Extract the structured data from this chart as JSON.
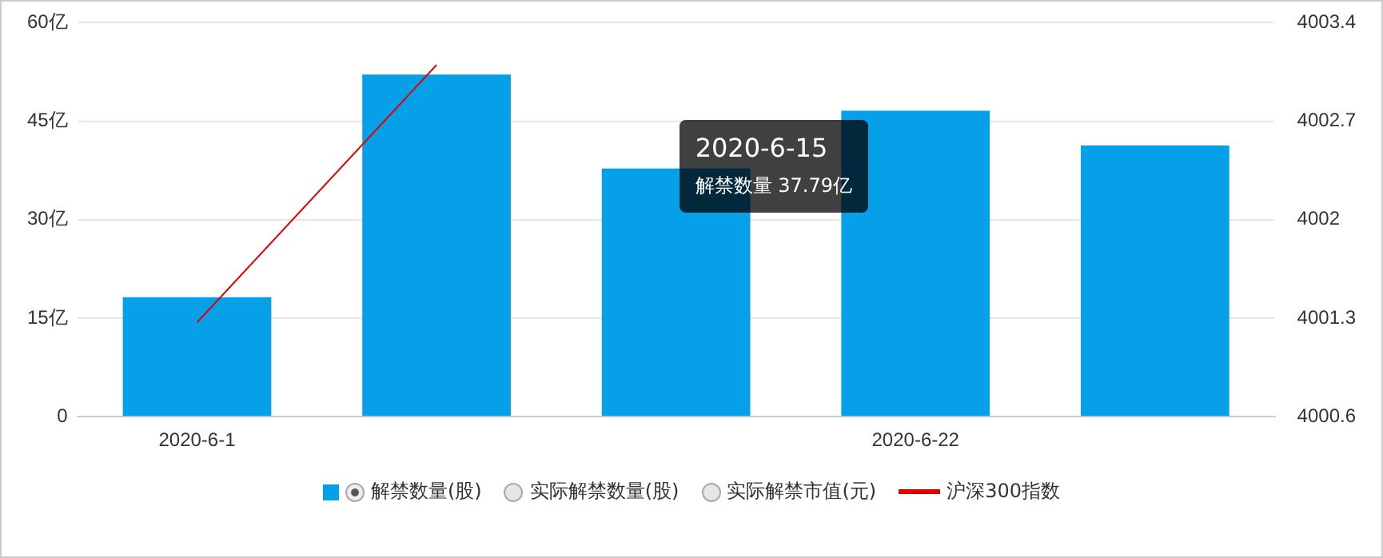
{
  "chart_data": {
    "type": "bar",
    "categories": [
      "2020-6-1",
      null,
      null,
      "2020-6-22",
      null
    ],
    "series": [
      {
        "name": "解禁数量(股)",
        "color": "#06a0e9",
        "values": [
          18.2,
          52.1,
          37.79,
          46.6,
          41.3
        ]
      },
      {
        "name": "实际解禁数量(股)",
        "color": "#e6e6e6",
        "values": [
          null,
          null,
          null,
          null,
          null
        ]
      },
      {
        "name": "实际解禁市值(元)",
        "color": "#e6e6e6",
        "values": [
          null,
          null,
          null,
          null,
          null
        ]
      },
      {
        "name": "沪深300指数",
        "type": "line",
        "axis": "y2",
        "color": "#e00000",
        "values": [
          4001.27,
          4003.1,
          null,
          null,
          null
        ]
      }
    ],
    "ylim": [
      0,
      60
    ],
    "yticks": [
      0,
      {
        "value": 15,
        "label": "15亿"
      },
      {
        "value": 30,
        "label": "30亿"
      },
      {
        "value": 45,
        "label": "45亿"
      },
      {
        "value": 60,
        "label": "60亿"
      }
    ],
    "y2lim": [
      4000.6,
      4003.4
    ],
    "y2ticks": [
      4000.6,
      4001.3,
      4002,
      4002.7,
      4003.4
    ],
    "grid": "y",
    "legend": "bottom",
    "marker": "none",
    "annotations": [
      "2020-6-15",
      "解禁数量 37.79亿"
    ]
  }
}
